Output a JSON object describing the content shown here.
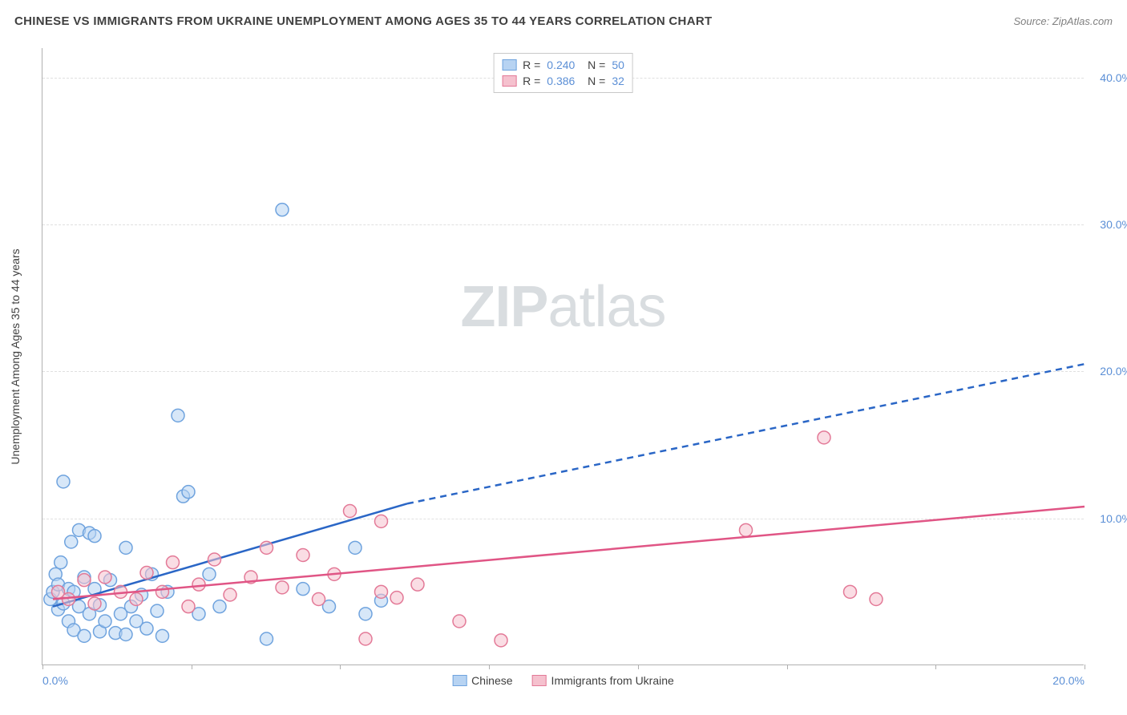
{
  "title": "CHINESE VS IMMIGRANTS FROM UKRAINE UNEMPLOYMENT AMONG AGES 35 TO 44 YEARS CORRELATION CHART",
  "source": "Source: ZipAtlas.com",
  "chart": {
    "type": "scatter",
    "y_axis_label": "Unemployment Among Ages 35 to 44 years",
    "xlim": [
      0,
      20
    ],
    "ylim": [
      0,
      42
    ],
    "y_ticks": [
      10,
      20,
      30,
      40
    ],
    "y_tick_labels": [
      "10.0%",
      "20.0%",
      "30.0%",
      "40.0%"
    ],
    "x_ticks": [
      0,
      2.86,
      5.71,
      8.57,
      11.43,
      14.29,
      17.14,
      20
    ],
    "x_tick_labels_shown": {
      "0": "0.0%",
      "20": "20.0%"
    },
    "grid_color": "#e0e0e0",
    "axis_color": "#b0b0b0",
    "background_color": "#ffffff",
    "tick_label_color": "#5b8fd6",
    "marker_radius": 8,
    "marker_stroke_width": 1.5,
    "series": [
      {
        "name": "Chinese",
        "fill": "#b7d3f2",
        "stroke": "#6fa3de",
        "fill_opacity": 0.55,
        "R": "0.240",
        "N": "50",
        "trend": {
          "x1": 0.2,
          "y1": 4.0,
          "x2": 7.0,
          "y2": 11.0,
          "x2_dash": 20.0,
          "y2_dash": 20.5,
          "color": "#2a66c6",
          "width": 2.5
        },
        "points": [
          [
            0.15,
            4.5
          ],
          [
            0.2,
            5.0
          ],
          [
            0.25,
            6.2
          ],
          [
            0.3,
            3.8
          ],
          [
            0.3,
            5.5
          ],
          [
            0.35,
            7.0
          ],
          [
            0.4,
            12.5
          ],
          [
            0.4,
            4.2
          ],
          [
            0.5,
            5.2
          ],
          [
            0.5,
            3.0
          ],
          [
            0.55,
            8.4
          ],
          [
            0.6,
            2.4
          ],
          [
            0.6,
            5.0
          ],
          [
            0.7,
            9.2
          ],
          [
            0.7,
            4.0
          ],
          [
            0.8,
            2.0
          ],
          [
            0.8,
            6.0
          ],
          [
            0.9,
            9.0
          ],
          [
            0.9,
            3.5
          ],
          [
            1.0,
            8.8
          ],
          [
            1.0,
            5.2
          ],
          [
            1.1,
            4.1
          ],
          [
            1.1,
            2.3
          ],
          [
            1.2,
            3.0
          ],
          [
            1.3,
            5.8
          ],
          [
            1.4,
            2.2
          ],
          [
            1.5,
            3.5
          ],
          [
            1.6,
            8.0
          ],
          [
            1.6,
            2.1
          ],
          [
            1.7,
            4.0
          ],
          [
            1.8,
            3.0
          ],
          [
            1.9,
            4.8
          ],
          [
            2.0,
            2.5
          ],
          [
            2.1,
            6.2
          ],
          [
            2.2,
            3.7
          ],
          [
            2.3,
            2.0
          ],
          [
            2.4,
            5.0
          ],
          [
            2.6,
            17.0
          ],
          [
            2.7,
            11.5
          ],
          [
            2.8,
            11.8
          ],
          [
            3.0,
            3.5
          ],
          [
            3.2,
            6.2
          ],
          [
            3.4,
            4.0
          ],
          [
            4.3,
            1.8
          ],
          [
            4.6,
            31.0
          ],
          [
            5.0,
            5.2
          ],
          [
            5.5,
            4.0
          ],
          [
            6.0,
            8.0
          ],
          [
            6.2,
            3.5
          ],
          [
            6.5,
            4.4
          ]
        ]
      },
      {
        "name": "Immigrants from Ukraine",
        "fill": "#f5c1ce",
        "stroke": "#e37997",
        "fill_opacity": 0.55,
        "R": "0.386",
        "N": "32",
        "trend": {
          "x1": 0.2,
          "y1": 4.5,
          "x2": 20.0,
          "y2": 10.8,
          "color": "#e05585",
          "width": 2.5
        },
        "points": [
          [
            0.3,
            5.0
          ],
          [
            0.5,
            4.5
          ],
          [
            0.8,
            5.8
          ],
          [
            1.0,
            4.2
          ],
          [
            1.2,
            6.0
          ],
          [
            1.5,
            5.0
          ],
          [
            1.8,
            4.5
          ],
          [
            2.0,
            6.3
          ],
          [
            2.3,
            5.0
          ],
          [
            2.5,
            7.0
          ],
          [
            2.8,
            4.0
          ],
          [
            3.0,
            5.5
          ],
          [
            3.3,
            7.2
          ],
          [
            3.6,
            4.8
          ],
          [
            4.0,
            6.0
          ],
          [
            4.3,
            8.0
          ],
          [
            4.6,
            5.3
          ],
          [
            5.0,
            7.5
          ],
          [
            5.3,
            4.5
          ],
          [
            5.6,
            6.2
          ],
          [
            5.9,
            10.5
          ],
          [
            6.2,
            1.8
          ],
          [
            6.5,
            9.8
          ],
          [
            6.5,
            5.0
          ],
          [
            6.8,
            4.6
          ],
          [
            7.2,
            5.5
          ],
          [
            8.0,
            3.0
          ],
          [
            8.8,
            1.7
          ],
          [
            13.5,
            9.2
          ],
          [
            15.0,
            15.5
          ],
          [
            15.5,
            5.0
          ],
          [
            16.0,
            4.5
          ]
        ]
      }
    ],
    "watermark": {
      "text_bold": "ZIP",
      "text_light": "atlas",
      "color": "#d9dde0",
      "font_size": 72
    }
  },
  "legend_bottom": [
    {
      "label": "Chinese",
      "fill": "#b7d3f2",
      "stroke": "#6fa3de"
    },
    {
      "label": "Immigrants from Ukraine",
      "fill": "#f5c1ce",
      "stroke": "#e37997"
    }
  ]
}
